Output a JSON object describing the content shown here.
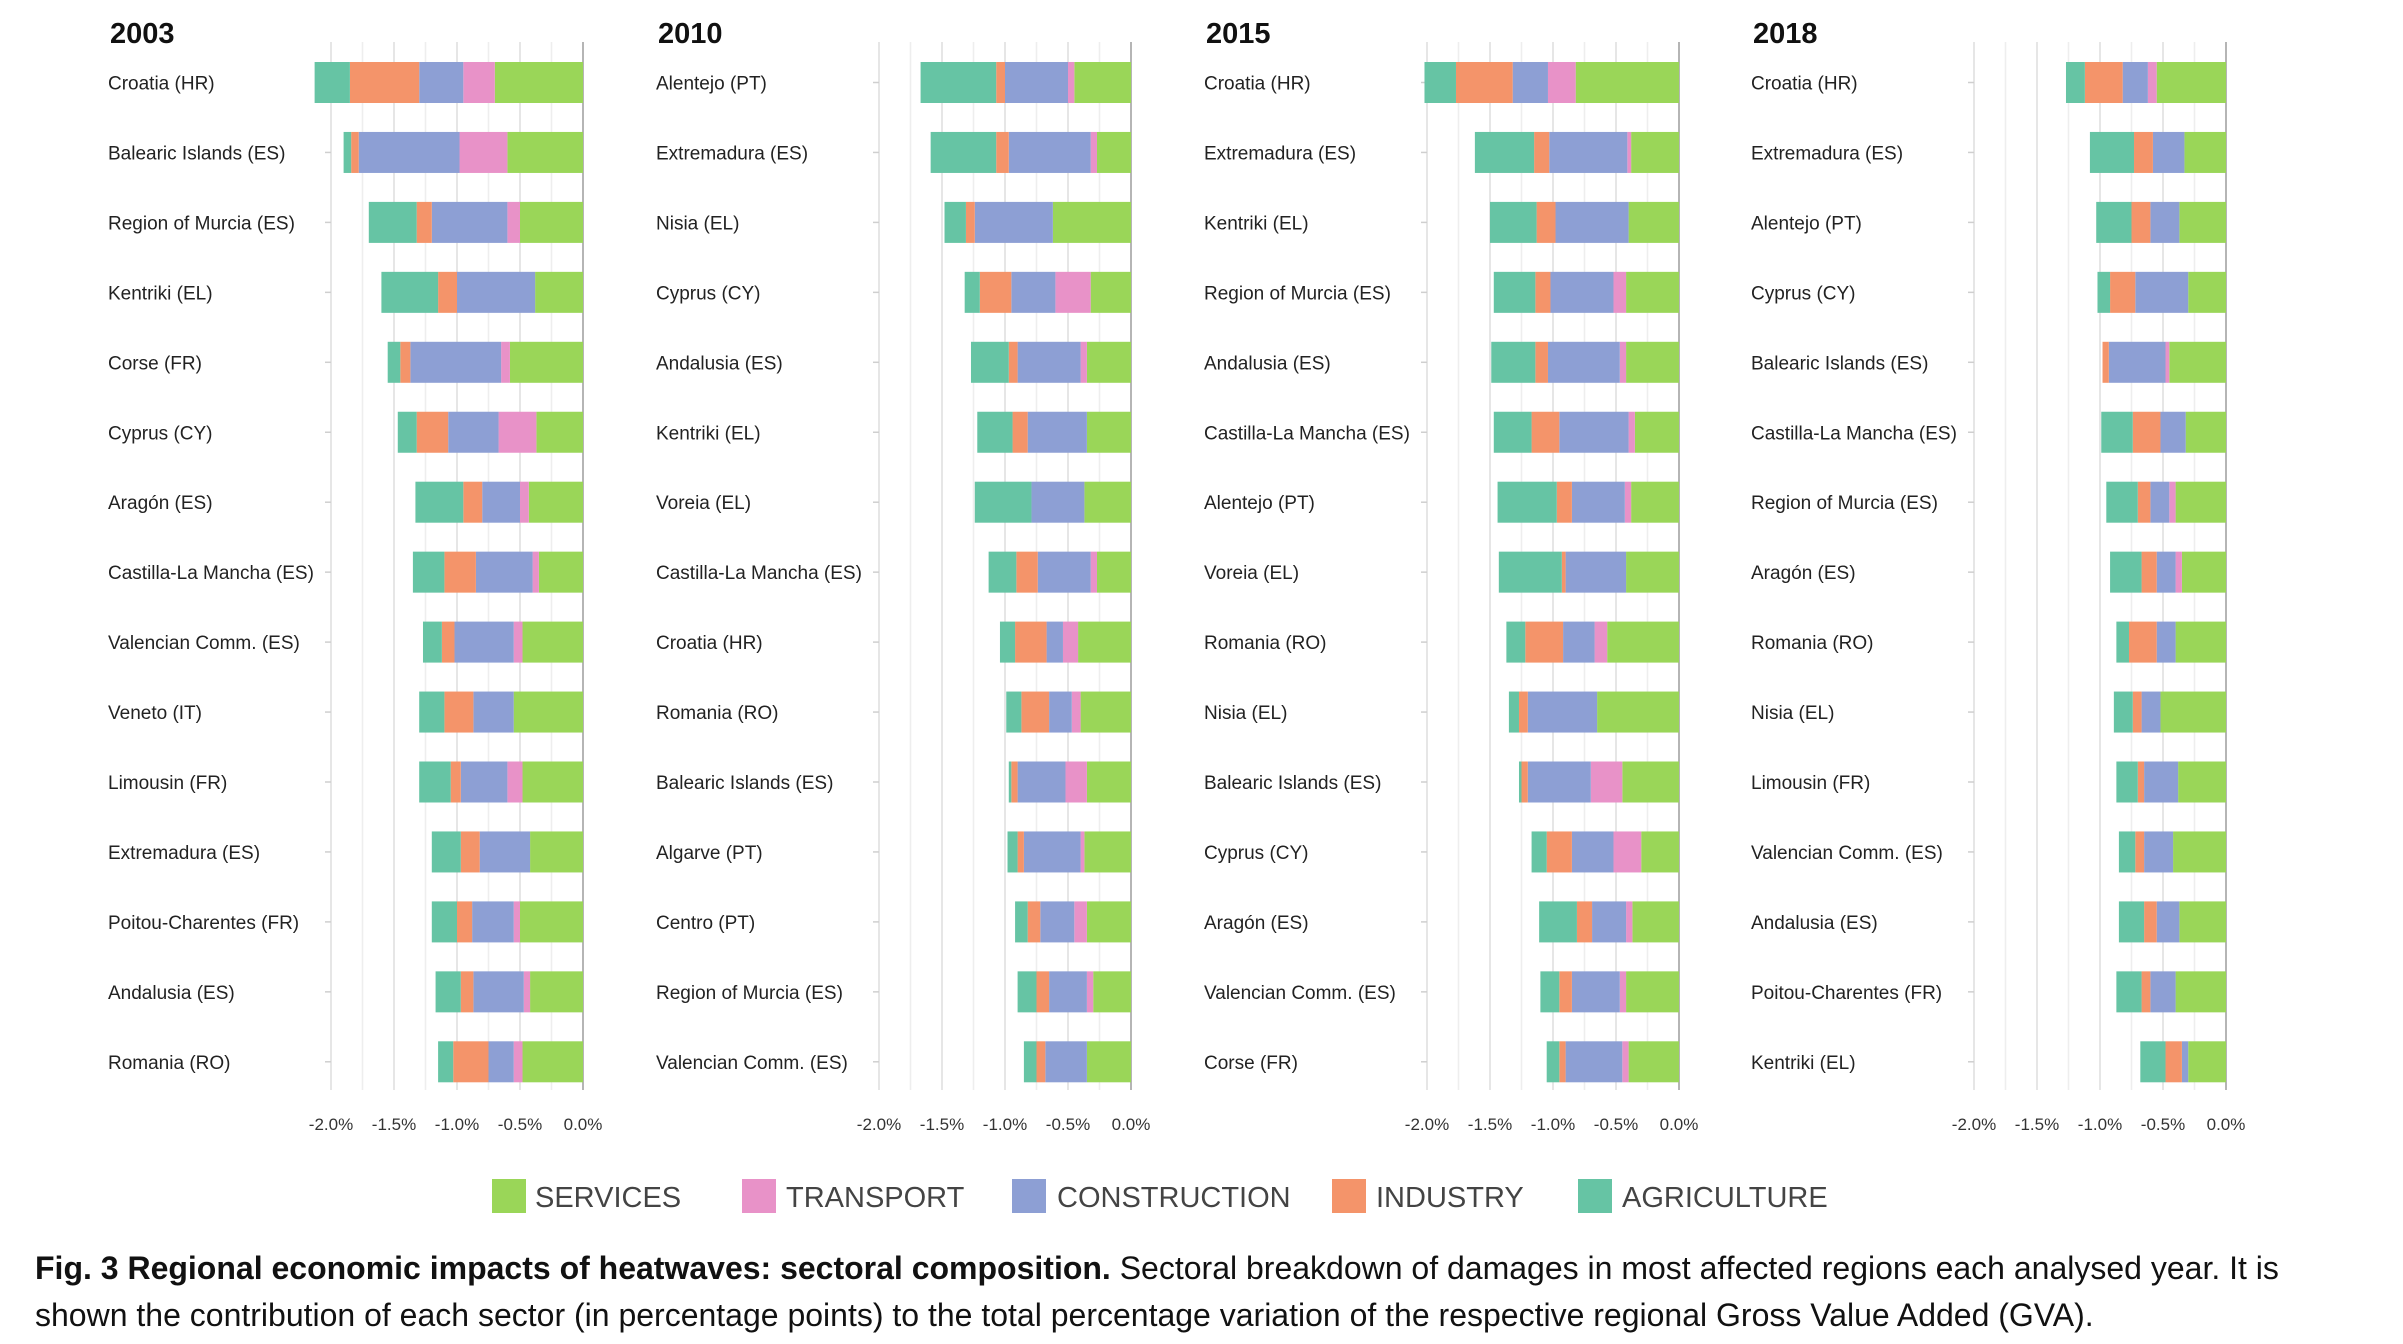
{
  "chart_data": {
    "type": "bar",
    "orientation": "horizontal",
    "stacked": true,
    "unit": "percentage points of regional GVA",
    "xlim": [
      -2.0,
      0.0
    ],
    "x_ticks": [
      "-2.0%",
      "-1.5%",
      "-1.0%",
      "-0.5%",
      "0.0%"
    ],
    "grid": true,
    "legend_position": "bottom",
    "sectors": [
      "SERVICES",
      "TRANSPORT",
      "CONSTRUCTION",
      "INDUSTRY",
      "AGRICULTURE"
    ],
    "colors": {
      "SERVICES": "#9ad658",
      "TRANSPORT": "#e892c8",
      "CONSTRUCTION": "#8d9fd4",
      "INDUSTRY": "#f4946a",
      "AGRICULTURE": "#66c4a4"
    },
    "panels": [
      {
        "title": "2003",
        "regions": [
          {
            "label": "Croatia (HR)",
            "values": [
              -0.7,
              -0.25,
              -0.35,
              -0.55,
              -0.28
            ]
          },
          {
            "label": "Balearic Islands (ES)",
            "values": [
              -0.6,
              -0.38,
              -0.8,
              -0.06,
              -0.06
            ]
          },
          {
            "label": "Region of Murcia (ES)",
            "values": [
              -0.5,
              -0.1,
              -0.6,
              -0.12,
              -0.38
            ]
          },
          {
            "label": "Kentriki (EL)",
            "values": [
              -0.38,
              0,
              -0.62,
              -0.15,
              -0.45
            ]
          },
          {
            "label": "Corse (FR)",
            "values": [
              -0.58,
              -0.07,
              -0.72,
              -0.08,
              -0.1
            ]
          },
          {
            "label": "Cyprus (CY)",
            "values": [
              -0.37,
              -0.3,
              -0.4,
              -0.25,
              -0.15
            ]
          },
          {
            "label": "Aragón (ES)",
            "values": [
              -0.43,
              -0.07,
              -0.3,
              -0.15,
              -0.38
            ]
          },
          {
            "label": "Castilla-La Mancha (ES)",
            "values": [
              -0.35,
              -0.05,
              -0.45,
              -0.25,
              -0.25
            ]
          },
          {
            "label": "Valencian Comm. (ES)",
            "values": [
              -0.48,
              -0.07,
              -0.47,
              -0.1,
              -0.15
            ]
          },
          {
            "label": "Veneto (IT)",
            "values": [
              -0.55,
              0,
              -0.32,
              -0.23,
              -0.2
            ]
          },
          {
            "label": "Limousin (FR)",
            "values": [
              -0.48,
              -0.12,
              -0.37,
              -0.08,
              -0.25
            ]
          },
          {
            "label": "Extremadura (ES)",
            "values": [
              -0.42,
              0,
              -0.4,
              -0.15,
              -0.23
            ]
          },
          {
            "label": "Poitou-Charentes (FR)",
            "values": [
              -0.5,
              -0.05,
              -0.33,
              -0.12,
              -0.2
            ]
          },
          {
            "label": "Andalusia (ES)",
            "values": [
              -0.42,
              -0.05,
              -0.4,
              -0.1,
              -0.2
            ]
          },
          {
            "label": "Romania (RO)",
            "values": [
              -0.48,
              -0.07,
              -0.2,
              -0.28,
              -0.12
            ]
          }
        ]
      },
      {
        "title": "2010",
        "regions": [
          {
            "label": "Alentejo (PT)",
            "values": [
              -0.45,
              -0.05,
              -0.5,
              -0.07,
              -0.6
            ]
          },
          {
            "label": "Extremadura (ES)",
            "values": [
              -0.27,
              -0.05,
              -0.65,
              -0.1,
              -0.52
            ]
          },
          {
            "label": "Nisia (EL)",
            "values": [
              -0.62,
              0,
              -0.62,
              -0.07,
              -0.17
            ]
          },
          {
            "label": "Cyprus (CY)",
            "values": [
              -0.32,
              -0.28,
              -0.35,
              -0.25,
              -0.12
            ]
          },
          {
            "label": "Andalusia (ES)",
            "values": [
              -0.35,
              -0.05,
              -0.5,
              -0.07,
              -0.3
            ]
          },
          {
            "label": "Kentriki (EL)",
            "values": [
              -0.35,
              0,
              -0.47,
              -0.12,
              -0.28
            ]
          },
          {
            "label": "Voreia (EL)",
            "values": [
              -0.37,
              0,
              -0.42,
              0,
              -0.45
            ]
          },
          {
            "label": "Castilla-La Mancha (ES)",
            "values": [
              -0.27,
              -0.05,
              -0.42,
              -0.17,
              -0.22
            ]
          },
          {
            "label": "Croatia (HR)",
            "values": [
              -0.42,
              -0.12,
              -0.13,
              -0.25,
              -0.12
            ]
          },
          {
            "label": "Romania (RO)",
            "values": [
              -0.4,
              -0.07,
              -0.18,
              -0.22,
              -0.12
            ]
          },
          {
            "label": "Balearic Islands (ES)",
            "values": [
              -0.35,
              -0.17,
              -0.38,
              -0.05,
              -0.02
            ]
          },
          {
            "label": "Algarve (PT)",
            "values": [
              -0.37,
              -0.03,
              -0.45,
              -0.05,
              -0.08
            ]
          },
          {
            "label": "Centro (PT)",
            "values": [
              -0.35,
              -0.1,
              -0.27,
              -0.1,
              -0.1
            ]
          },
          {
            "label": "Region of Murcia (ES)",
            "values": [
              -0.3,
              -0.05,
              -0.3,
              -0.1,
              -0.15
            ]
          },
          {
            "label": "Valencian Comm. (ES)",
            "values": [
              -0.35,
              0,
              -0.33,
              -0.07,
              -0.1
            ]
          }
        ]
      },
      {
        "title": "2015",
        "regions": [
          {
            "label": "Croatia (HR)",
            "values": [
              -0.82,
              -0.22,
              -0.28,
              -0.45,
              -0.25
            ]
          },
          {
            "label": "Extremadura (ES)",
            "values": [
              -0.38,
              -0.03,
              -0.62,
              -0.12,
              -0.47
            ]
          },
          {
            "label": "Kentriki (EL)",
            "values": [
              -0.4,
              0,
              -0.58,
              -0.15,
              -0.37
            ]
          },
          {
            "label": "Region of Murcia (ES)",
            "values": [
              -0.42,
              -0.1,
              -0.5,
              -0.12,
              -0.33
            ]
          },
          {
            "label": "Andalusia (ES)",
            "values": [
              -0.42,
              -0.05,
              -0.57,
              -0.1,
              -0.35
            ]
          },
          {
            "label": "Castilla-La Mancha (ES)",
            "values": [
              -0.35,
              -0.05,
              -0.55,
              -0.22,
              -0.3
            ]
          },
          {
            "label": "Alentejo (PT)",
            "values": [
              -0.38,
              -0.05,
              -0.42,
              -0.12,
              -0.47
            ]
          },
          {
            "label": "Voreia (EL)",
            "values": [
              -0.42,
              0,
              -0.48,
              -0.03,
              -0.5
            ]
          },
          {
            "label": "Romania (RO)",
            "values": [
              -0.57,
              -0.1,
              -0.25,
              -0.3,
              -0.15
            ]
          },
          {
            "label": "Nisia (EL)",
            "values": [
              -0.65,
              0,
              -0.55,
              -0.07,
              -0.08
            ]
          },
          {
            "label": "Balearic Islands (ES)",
            "values": [
              -0.45,
              -0.25,
              -0.5,
              -0.05,
              -0.02
            ]
          },
          {
            "label": "Cyprus (CY)",
            "values": [
              -0.3,
              -0.22,
              -0.33,
              -0.2,
              -0.12
            ]
          },
          {
            "label": "Aragón (ES)",
            "values": [
              -0.37,
              -0.05,
              -0.27,
              -0.12,
              -0.3
            ]
          },
          {
            "label": "Valencian Comm. (ES)",
            "values": [
              -0.42,
              -0.05,
              -0.38,
              -0.1,
              -0.15
            ]
          },
          {
            "label": "Corse (FR)",
            "values": [
              -0.4,
              -0.05,
              -0.45,
              -0.05,
              -0.1
            ]
          }
        ]
      },
      {
        "title": "2018",
        "regions": [
          {
            "label": "Croatia (HR)",
            "values": [
              -0.55,
              -0.07,
              -0.2,
              -0.3,
              -0.15
            ]
          },
          {
            "label": "Extremadura (ES)",
            "values": [
              -0.33,
              0,
              -0.25,
              -0.15,
              -0.35
            ]
          },
          {
            "label": "Alentejo (PT)",
            "values": [
              -0.37,
              0,
              -0.23,
              -0.15,
              -0.28
            ]
          },
          {
            "label": "Cyprus (CY)",
            "values": [
              -0.3,
              0,
              -0.42,
              -0.2,
              -0.1
            ]
          },
          {
            "label": "Balearic Islands (ES)",
            "values": [
              -0.45,
              -0.03,
              -0.45,
              -0.05,
              0
            ]
          },
          {
            "label": "Castilla-La Mancha (ES)",
            "values": [
              -0.32,
              0,
              -0.2,
              -0.22,
              -0.25
            ]
          },
          {
            "label": "Region of Murcia (ES)",
            "values": [
              -0.4,
              -0.05,
              -0.15,
              -0.1,
              -0.25
            ]
          },
          {
            "label": "Aragón (ES)",
            "values": [
              -0.35,
              -0.05,
              -0.15,
              -0.12,
              -0.25
            ]
          },
          {
            "label": "Romania (RO)",
            "values": [
              -0.4,
              0,
              -0.15,
              -0.22,
              -0.1
            ]
          },
          {
            "label": "Nisia (EL)",
            "values": [
              -0.52,
              0,
              -0.15,
              -0.07,
              -0.15
            ]
          },
          {
            "label": "Limousin (FR)",
            "values": [
              -0.38,
              0,
              -0.27,
              -0.05,
              -0.17
            ]
          },
          {
            "label": "Valencian Comm. (ES)",
            "values": [
              -0.42,
              0,
              -0.23,
              -0.07,
              -0.13
            ]
          },
          {
            "label": "Andalusia (ES)",
            "values": [
              -0.37,
              0,
              -0.18,
              -0.1,
              -0.2
            ]
          },
          {
            "label": "Poitou-Charentes (FR)",
            "values": [
              -0.4,
              0,
              -0.2,
              -0.07,
              -0.2
            ]
          },
          {
            "label": "Kentriki (EL)",
            "values": [
              -0.3,
              0,
              -0.05,
              -0.13,
              -0.2
            ]
          }
        ]
      }
    ]
  },
  "caption": {
    "label": "Fig. 3",
    "title": "Regional economic impacts of heatwaves: sectoral composition.",
    "text": "Sectoral breakdown of damages in most affected regions each analysed year. It is shown the contribution of each sector (in percentage points) to the total percentage variation of the respective regional Gross Value Added (GVA)."
  }
}
